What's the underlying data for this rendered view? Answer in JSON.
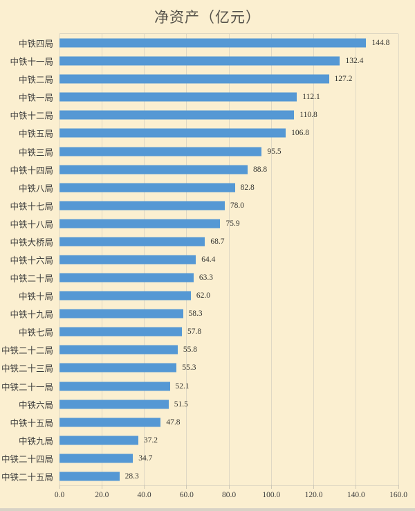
{
  "window": {
    "background_color": "#FBEFD0",
    "bottom_edge_color": "#D8D3C6"
  },
  "chart_data": {
    "type": "bar",
    "orientation": "horizontal",
    "title": "净资产（亿元）",
    "xlabel": "",
    "ylabel": "",
    "xlim": [
      0,
      160
    ],
    "grid": true,
    "legend": false,
    "bar_color": "#5598D4",
    "grid_color": "#DFD8C4",
    "text_color": "#3C3C3C",
    "title_color": "#55524A",
    "categories": [
      "中铁四局",
      "中铁十一局",
      "中铁二局",
      "中铁一局",
      "中铁十二局",
      "中铁五局",
      "中铁三局",
      "中铁十四局",
      "中铁八局",
      "中铁十七局",
      "中铁十八局",
      "中铁大桥局",
      "中铁十六局",
      "中铁二十局",
      "中铁十局",
      "中铁十九局",
      "中铁七局",
      "中铁二十二局",
      "中铁二十三局",
      "中铁二十一局",
      "中铁六局",
      "中铁十五局",
      "中铁九局",
      "中铁二十四局",
      "中铁二十五局"
    ],
    "values": [
      144.8,
      132.4,
      127.2,
      112.1,
      110.8,
      106.8,
      95.5,
      88.8,
      82.8,
      78.0,
      75.9,
      68.7,
      64.4,
      63.3,
      62.0,
      58.3,
      57.8,
      55.8,
      55.3,
      52.1,
      51.5,
      47.8,
      37.2,
      34.7,
      28.3
    ],
    "value_labels": [
      "144.8",
      "132.4",
      "127.2",
      "112.1",
      "110.8",
      "106.8",
      "95.5",
      "88.8",
      "82.8",
      "78.0",
      "75.9",
      "68.7",
      "64.4",
      "63.3",
      "62.0",
      "58.3",
      "57.8",
      "55.8",
      "55.3",
      "52.1",
      "51.5",
      "47.8",
      "37.2",
      "34.7",
      "28.3"
    ],
    "x_ticks": [
      0,
      20,
      40,
      60,
      80,
      100,
      120,
      140,
      160
    ],
    "x_tick_labels": [
      "0.0",
      "20.0",
      "40.0",
      "60.0",
      "80.0",
      "100.0",
      "120.0",
      "140.0",
      "160.0"
    ]
  }
}
